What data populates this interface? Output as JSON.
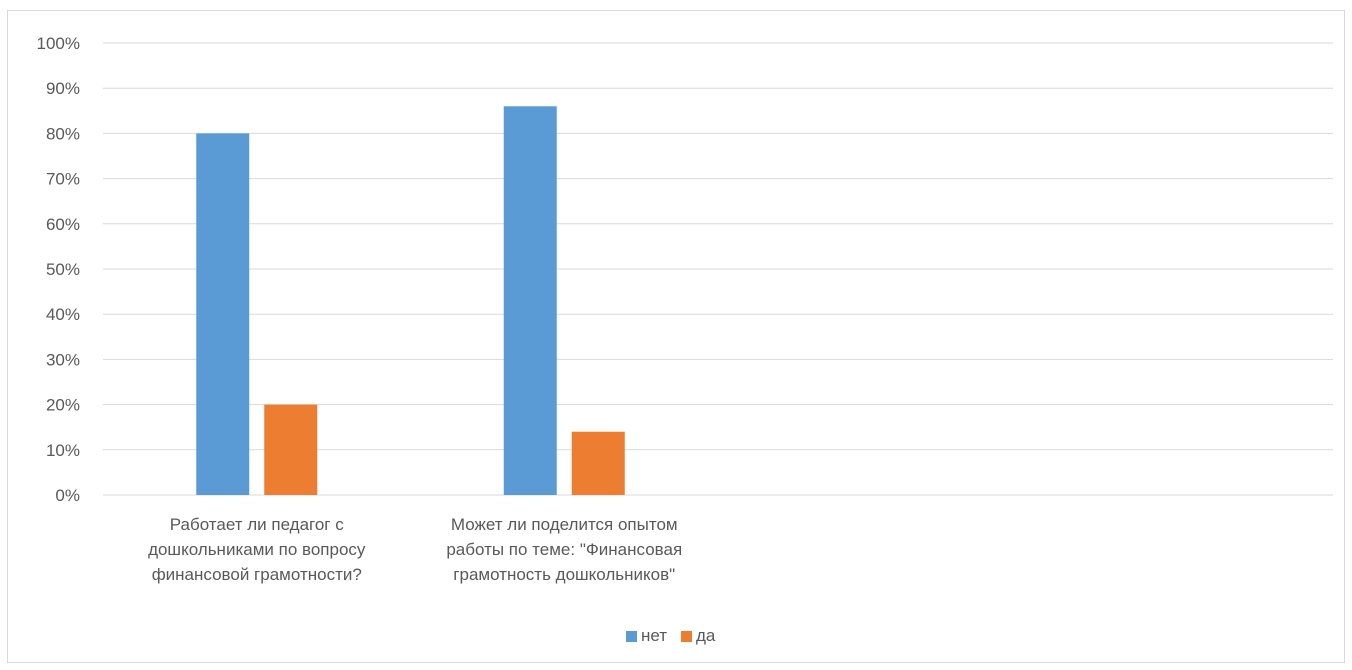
{
  "chart_data": {
    "type": "bar",
    "categories": [
      [
        "Работает ли педагог с",
        "дошкольниками по вопросу",
        "финансовой грамотности?"
      ],
      [
        "Может ли поделится опытом",
        "работы по теме: \"Финансовая",
        "грамотность дошкольников\""
      ],
      [
        ""
      ],
      [
        ""
      ]
    ],
    "series": [
      {
        "name": "нет",
        "color": "#5B9BD5",
        "values": [
          0.8,
          0.86,
          null,
          null
        ]
      },
      {
        "name": "да",
        "color": "#ED7D31",
        "values": [
          0.2,
          0.14,
          null,
          null
        ]
      }
    ],
    "ylim": [
      0,
      1
    ],
    "yticks": [
      "0%",
      "10%",
      "20%",
      "30%",
      "40%",
      "50%",
      "60%",
      "70%",
      "80%",
      "90%",
      "100%"
    ],
    "grid": true,
    "legend": "bottom"
  }
}
